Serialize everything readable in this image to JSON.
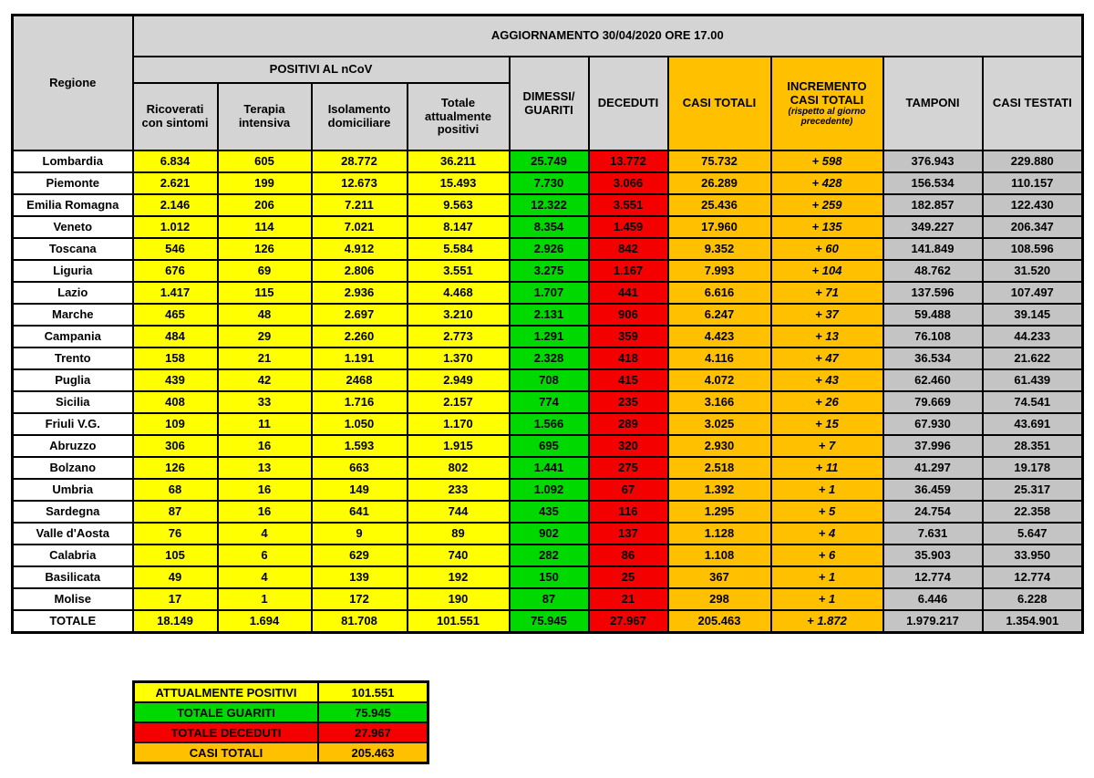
{
  "colors": {
    "yellow": "#FFFF00",
    "green": "#00D900",
    "red": "#F40000",
    "orange": "#FFC000",
    "header_gray": "#D4D4D4",
    "data_gray": "#C4C4C4",
    "border": "#000000"
  },
  "chart_data": {
    "type": "table",
    "title": "AGGIORNAMENTO 30/04/2020 ORE 17.00",
    "headers": {
      "corner": "Regione",
      "group": "POSITIVI AL nCoV",
      "sub": [
        "Ricoverati con sintomi",
        "Terapia intensiva",
        "Isolamento domiciliare",
        "Totale attualmente positivi"
      ],
      "dimessi": "DIMESSI/ GUARITI",
      "deceduti": "DECEDUTI",
      "casi_totali": "CASI TOTALI",
      "incremento": "INCREMENTO CASI TOTALI",
      "incremento_note": "(rispetto al giorno precedente)",
      "tamponi": "TAMPONI",
      "casi_testati": "CASI TESTATI"
    },
    "columns": [
      "Regione",
      "Ricoverati con sintomi",
      "Terapia intensiva",
      "Isolamento domiciliare",
      "Totale attualmente positivi",
      "DIMESSI/GUARITI",
      "DECEDUTI",
      "CASI TOTALI",
      "INCREMENTO CASI TOTALI (rispetto al giorno precedente)",
      "TAMPONI",
      "CASI TESTATI"
    ],
    "rows": [
      {
        "region": "Lombardia",
        "values": [
          "6.834",
          "605",
          "28.772",
          "36.211",
          "25.749",
          "13.772",
          "75.732",
          "+ 598",
          "376.943",
          "229.880"
        ]
      },
      {
        "region": "Piemonte",
        "values": [
          "2.621",
          "199",
          "12.673",
          "15.493",
          "7.730",
          "3.066",
          "26.289",
          "+ 428",
          "156.534",
          "110.157"
        ]
      },
      {
        "region": "Emilia Romagna",
        "values": [
          "2.146",
          "206",
          "7.211",
          "9.563",
          "12.322",
          "3.551",
          "25.436",
          "+ 259",
          "182.857",
          "122.430"
        ]
      },
      {
        "region": "Veneto",
        "values": [
          "1.012",
          "114",
          "7.021",
          "8.147",
          "8.354",
          "1.459",
          "17.960",
          "+ 135",
          "349.227",
          "206.347"
        ]
      },
      {
        "region": "Toscana",
        "values": [
          "546",
          "126",
          "4.912",
          "5.584",
          "2.926",
          "842",
          "9.352",
          "+ 60",
          "141.849",
          "108.596"
        ]
      },
      {
        "region": "Liguria",
        "values": [
          "676",
          "69",
          "2.806",
          "3.551",
          "3.275",
          "1.167",
          "7.993",
          "+ 104",
          "48.762",
          "31.520"
        ]
      },
      {
        "region": "Lazio",
        "values": [
          "1.417",
          "115",
          "2.936",
          "4.468",
          "1.707",
          "441",
          "6.616",
          "+ 71",
          "137.596",
          "107.497"
        ]
      },
      {
        "region": "Marche",
        "values": [
          "465",
          "48",
          "2.697",
          "3.210",
          "2.131",
          "906",
          "6.247",
          "+ 37",
          "59.488",
          "39.145"
        ]
      },
      {
        "region": "Campania",
        "values": [
          "484",
          "29",
          "2.260",
          "2.773",
          "1.291",
          "359",
          "4.423",
          "+ 13",
          "76.108",
          "44.233"
        ]
      },
      {
        "region": "Trento",
        "values": [
          "158",
          "21",
          "1.191",
          "1.370",
          "2.328",
          "418",
          "4.116",
          "+ 47",
          "36.534",
          "21.622"
        ]
      },
      {
        "region": "Puglia",
        "values": [
          "439",
          "42",
          "2468",
          "2.949",
          "708",
          "415",
          "4.072",
          "+ 43",
          "62.460",
          "61.439"
        ]
      },
      {
        "region": "Sicilia",
        "values": [
          "408",
          "33",
          "1.716",
          "2.157",
          "774",
          "235",
          "3.166",
          "+ 26",
          "79.669",
          "74.541"
        ]
      },
      {
        "region": "Friuli V.G.",
        "values": [
          "109",
          "11",
          "1.050",
          "1.170",
          "1.566",
          "289",
          "3.025",
          "+ 15",
          "67.930",
          "43.691"
        ]
      },
      {
        "region": "Abruzzo",
        "values": [
          "306",
          "16",
          "1.593",
          "1.915",
          "695",
          "320",
          "2.930",
          "+ 7",
          "37.996",
          "28.351"
        ]
      },
      {
        "region": "Bolzano",
        "values": [
          "126",
          "13",
          "663",
          "802",
          "1.441",
          "275",
          "2.518",
          "+ 11",
          "41.297",
          "19.178"
        ]
      },
      {
        "region": "Umbria",
        "values": [
          "68",
          "16",
          "149",
          "233",
          "1.092",
          "67",
          "1.392",
          "+ 1",
          "36.459",
          "25.317"
        ]
      },
      {
        "region": "Sardegna",
        "values": [
          "87",
          "16",
          "641",
          "744",
          "435",
          "116",
          "1.295",
          "+ 5",
          "24.754",
          "22.358"
        ]
      },
      {
        "region": "Valle d'Aosta",
        "values": [
          "76",
          "4",
          "9",
          "89",
          "902",
          "137",
          "1.128",
          "+ 4",
          "7.631",
          "5.647"
        ]
      },
      {
        "region": "Calabria",
        "values": [
          "105",
          "6",
          "629",
          "740",
          "282",
          "86",
          "1.108",
          "+ 6",
          "35.903",
          "33.950"
        ]
      },
      {
        "region": "Basilicata",
        "values": [
          "49",
          "4",
          "139",
          "192",
          "150",
          "25",
          "367",
          "+ 1",
          "12.774",
          "12.774"
        ]
      },
      {
        "region": "Molise",
        "values": [
          "17",
          "1",
          "172",
          "190",
          "87",
          "21",
          "298",
          "+ 1",
          "6.446",
          "6.228"
        ]
      }
    ],
    "total": {
      "region": "TOTALE",
      "values": [
        "18.149",
        "1.694",
        "81.708",
        "101.551",
        "75.945",
        "27.967",
        "205.463",
        "+ 1.872",
        "1.979.217",
        "1.354.901"
      ]
    }
  },
  "summary": [
    {
      "label": "ATTUALMENTE POSITIVI",
      "value": "101.551",
      "color": "yellow"
    },
    {
      "label": "TOTALE GUARITI",
      "value": "75.945",
      "color": "green"
    },
    {
      "label": "TOTALE DECEDUTI",
      "value": "27.967",
      "color": "red"
    },
    {
      "label": "CASI TOTALI",
      "value": "205.463",
      "color": "orange"
    }
  ]
}
